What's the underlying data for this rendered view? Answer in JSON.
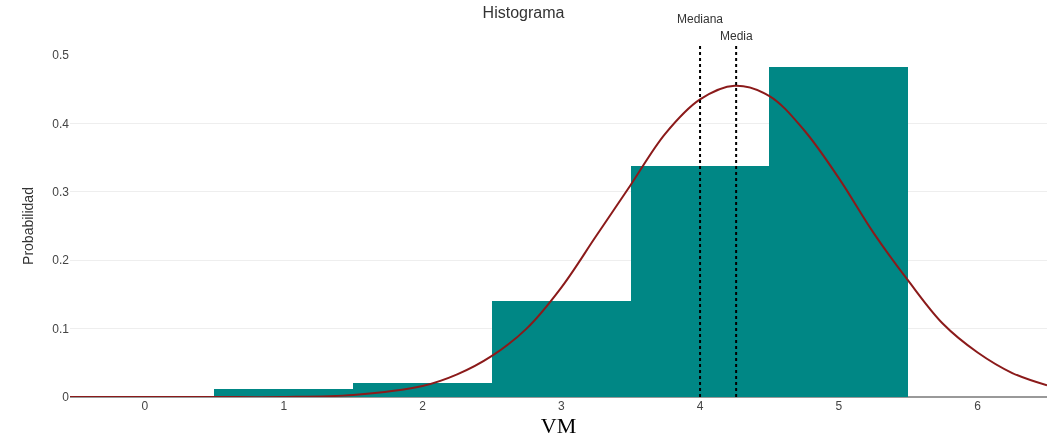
{
  "chart_data": {
    "type": "histogram",
    "title": "Histograma",
    "xlabel": "VM",
    "ylabel": "Probabilidad",
    "bins": [
      0.5,
      1.5,
      2.5,
      3.5,
      4.5,
      5.5
    ],
    "values": [
      0.012,
      0.021,
      0.14,
      0.338,
      0.483
    ],
    "color": "#008785",
    "series": [
      {
        "type": "line",
        "color": "#8b1a1a",
        "x": [
          -0.54,
          0,
          0.5,
          1,
          1.5,
          2,
          2.25,
          2.5,
          2.75,
          3,
          3.25,
          3.5,
          3.75,
          4,
          4.25,
          4.5,
          4.75,
          5,
          5.25,
          5.5,
          5.75,
          6,
          6.25,
          6.5
        ],
        "values": [
          0,
          0,
          0,
          0,
          0.003,
          0.016,
          0.033,
          0.06,
          0.1,
          0.16,
          0.235,
          0.31,
          0.385,
          0.435,
          0.455,
          0.44,
          0.39,
          0.32,
          0.24,
          0.17,
          0.107,
          0.065,
          0.035,
          0.017
        ]
      }
    ],
    "ref_lines": [
      {
        "axis": "x",
        "value": 4.0,
        "label": "Mediana",
        "color": "#000000",
        "line_style": "dotted"
      },
      {
        "axis": "x",
        "value": 4.26,
        "label": "Media",
        "color": "#000000",
        "line_style": "dotted"
      }
    ],
    "xlim": [
      -0.54,
      6.5
    ],
    "ylim": [
      0,
      0.5
    ],
    "xticks": [
      0,
      1,
      2,
      3,
      4,
      5,
      6
    ],
    "yticks": [
      0,
      0.1,
      0.2,
      0.3,
      0.4,
      0.5
    ],
    "grid": "y"
  }
}
